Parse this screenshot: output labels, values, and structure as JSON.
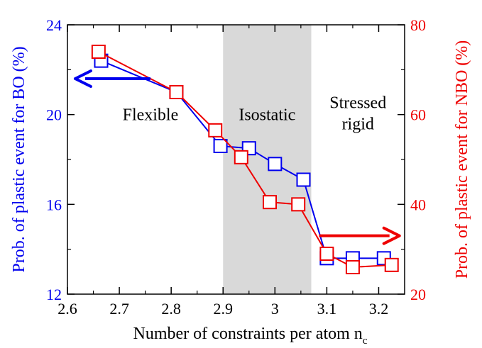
{
  "chart_data": {
    "type": "line",
    "xlabel": "Number of constraints per atom n",
    "xlabel_subscript": "c",
    "ylabel_left": "Prob. of plastic event for BO (%)",
    "ylabel_right": "Prob. of plastic event for NBO (%)",
    "xlim": [
      2.6,
      3.25
    ],
    "ylim_left": [
      12,
      24
    ],
    "ylim_right": [
      20,
      80
    ],
    "x_ticks": [
      2.6,
      2.7,
      2.8,
      2.9,
      3.0,
      3.1,
      3.2
    ],
    "x_tick_labels": [
      "2.6",
      "2.7",
      "2.8",
      "2.9",
      "3",
      "3.1",
      "3.2"
    ],
    "y_left_ticks": [
      12,
      16,
      20,
      24
    ],
    "y_left_tick_labels": [
      "12",
      "16",
      "20",
      "24"
    ],
    "y_right_ticks": [
      20,
      40,
      60,
      80
    ],
    "y_right_tick_labels": [
      "20",
      "40",
      "60",
      "80"
    ],
    "shaded_region": {
      "x": [
        2.9,
        3.07
      ],
      "color": "#d9d9d9"
    },
    "annotations": [
      {
        "text": "Flexible",
        "x": 2.76,
        "y": 20
      },
      {
        "text": "Isostatic",
        "x": 2.985,
        "y": 20
      },
      {
        "text": "Stressed",
        "x": 3.16,
        "y": 20.55
      },
      {
        "text": "rigid",
        "x": 3.16,
        "y": 19.6
      }
    ],
    "series": [
      {
        "axis": "left",
        "color": "#0000ee",
        "x": [
          2.665,
          2.81,
          2.895,
          2.95,
          3.0,
          3.055,
          3.1,
          3.15,
          3.21
        ],
        "values": [
          22.4,
          21.0,
          18.6,
          18.5,
          17.8,
          17.1,
          13.6,
          13.6,
          13.6
        ]
      },
      {
        "axis": "right",
        "color": "#ee0000",
        "x": [
          2.66,
          2.81,
          2.885,
          2.935,
          2.99,
          3.045,
          3.1,
          3.15,
          3.225
        ],
        "values": [
          74,
          65,
          56.5,
          50.5,
          40.5,
          40,
          29,
          26,
          26.5
        ]
      }
    ],
    "arrows": [
      {
        "color": "#0000ee",
        "direction": "left",
        "x_from": 2.76,
        "x_to": 2.615,
        "y": 21.6,
        "axis": "left"
      },
      {
        "color": "#ee0000",
        "direction": "right",
        "x_from": 3.085,
        "x_to": 3.24,
        "y": 33,
        "axis": "right"
      }
    ],
    "colors": {
      "left_axis": "#0000ee",
      "right_axis": "#ee0000",
      "shade": "#d9d9d9"
    }
  }
}
